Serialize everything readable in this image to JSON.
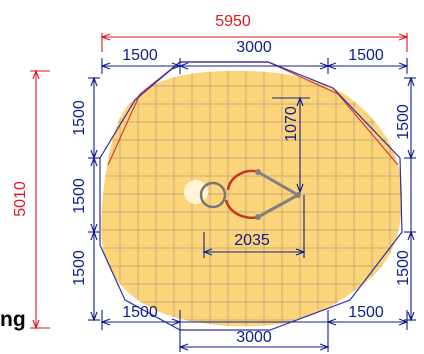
{
  "dimensions": {
    "overall_width": "5950",
    "overall_height": "5010",
    "top_span": "3000",
    "bottom_span": "3000",
    "top_left": "1500",
    "top_right": "1500",
    "bottom_left": "1500",
    "bottom_right": "1500",
    "left_upper": "1500",
    "left_middle": "1500",
    "left_lower": "1500",
    "right_upper": "1500",
    "right_lower": "1500",
    "inner_vertical": "1070",
    "inner_horizontal": "2035"
  },
  "cut_label": "ng",
  "colors": {
    "red_dimension": "#e0151d",
    "blue_dimension": "#101e8c",
    "swept_area": "#fcd57a",
    "grid": "#b9a27d",
    "outline": "#2f2fa8",
    "arm": "#808080"
  }
}
